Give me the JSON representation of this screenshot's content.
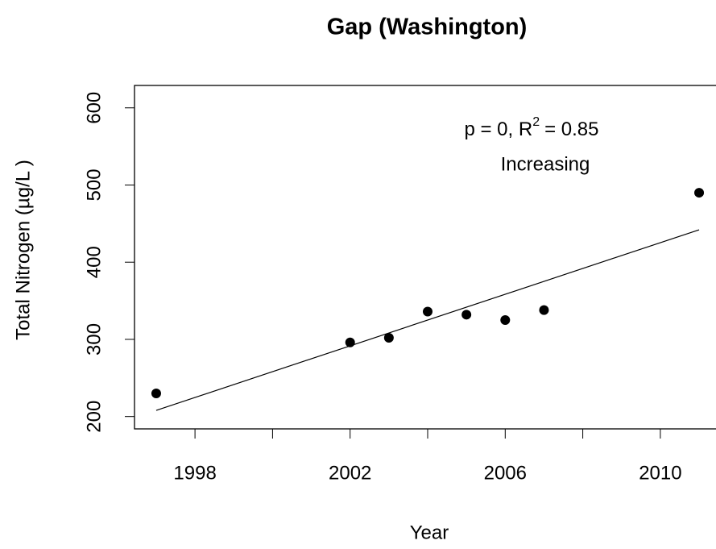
{
  "chart_data": {
    "type": "scatter",
    "title": "Gap (Washington)",
    "xlabel": "Year",
    "ylabel": "Total Nitrogen (µg/L )",
    "series": [
      {
        "name": null,
        "color": "#000000",
        "x": [
          1997,
          2002,
          2003,
          2004,
          2005,
          2006,
          2007,
          2011
        ],
        "values": [
          230,
          296,
          302,
          336,
          332,
          325,
          338,
          490
        ]
      }
    ],
    "trend": {
      "x": [
        1997,
        2011
      ],
      "values": [
        208,
        442
      ],
      "color": "#000000"
    },
    "annotation": {
      "stat": "p = 0, R",
      "superscript": "2",
      "r2": "= 0.85",
      "direction": "Increasing"
    },
    "xlim": [
      1996.44,
      2011.56
    ],
    "ylim": [
      184,
      629
    ],
    "xticks": [
      1998,
      {
        "value": 2000,
        "label": null
      },
      2002,
      {
        "value": 2004,
        "label": null
      },
      2006,
      {
        "value": 2008,
        "label": null
      },
      2010
    ],
    "yticks": [
      200,
      300,
      400,
      500,
      600
    ],
    "grid": false
  }
}
